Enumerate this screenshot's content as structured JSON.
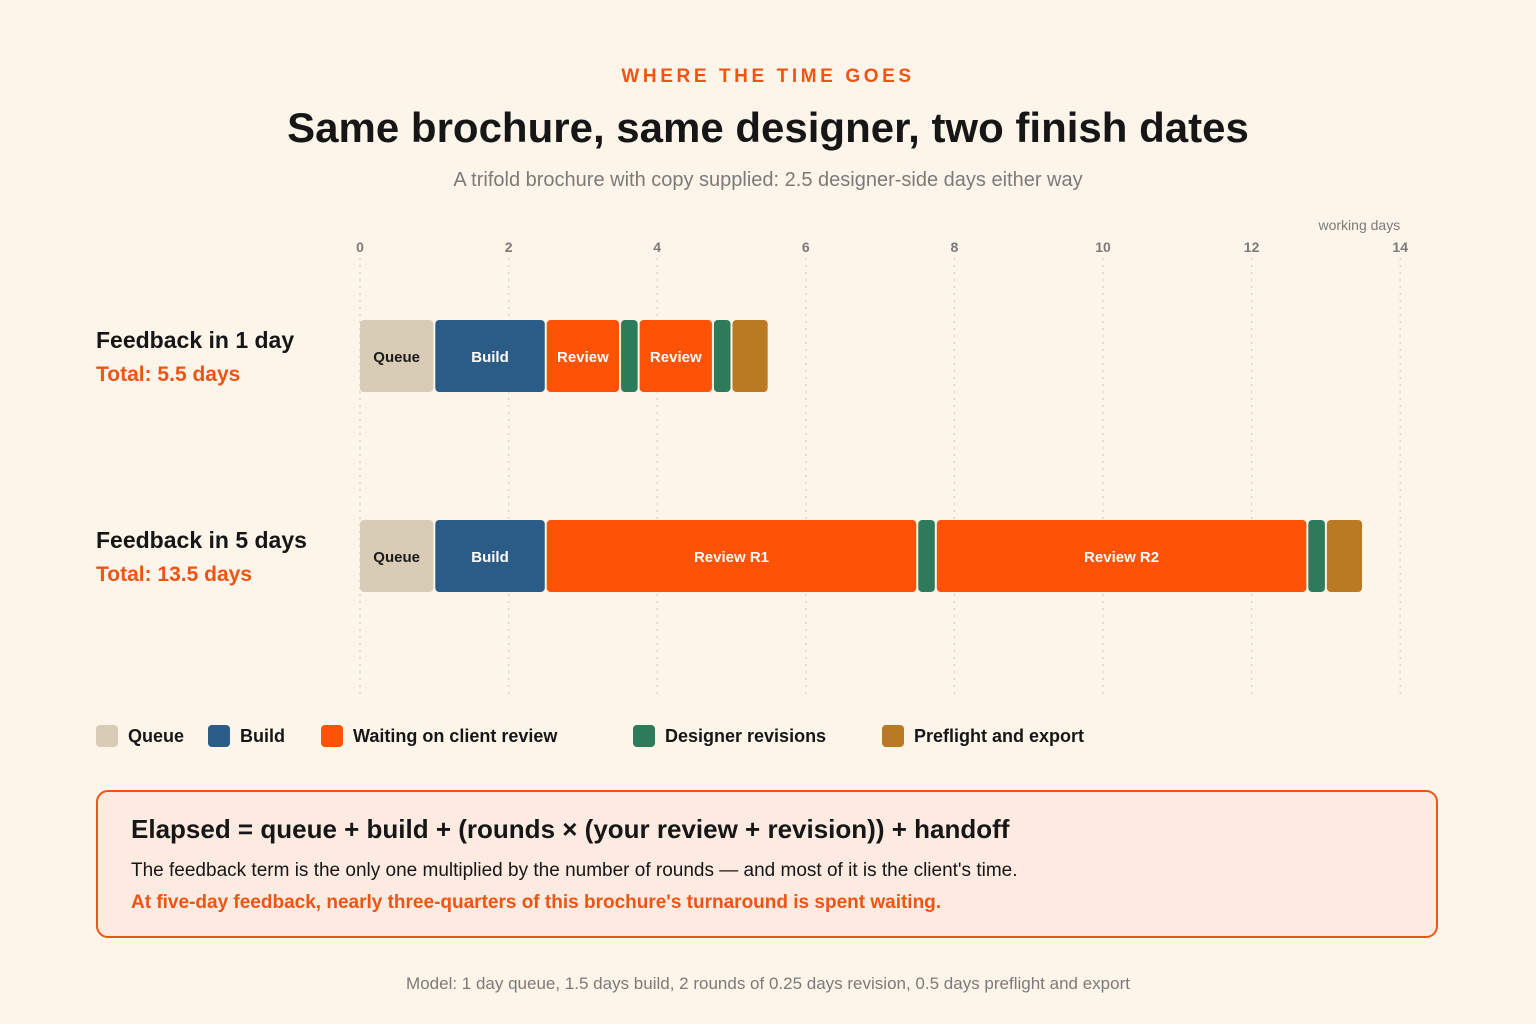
{
  "header": {
    "eyebrow": "WHERE THE TIME GOES",
    "title": "Same brochure, same designer, two finish dates",
    "subtitle": "A trifold brochure with copy supplied: 2.5 designer-side days either way"
  },
  "chart_data": {
    "type": "bar",
    "orientation": "horizontal-stacked-timeline",
    "x_axis": {
      "label": "working days",
      "range": [
        0,
        14
      ],
      "ticks": [
        0,
        2,
        4,
        6,
        8,
        10,
        12,
        14
      ],
      "grid": "dotted vertical"
    },
    "rows": [
      {
        "label": "Feedback in 1 day",
        "total_label": "Total: 5.5 days",
        "segments": [
          {
            "category": "queue",
            "start": 0,
            "end": 1,
            "label": "Queue"
          },
          {
            "category": "build",
            "start": 1,
            "end": 2.5,
            "label": "Build"
          },
          {
            "category": "review",
            "start": 2.5,
            "end": 3.5,
            "label": "Review"
          },
          {
            "category": "revision",
            "start": 3.5,
            "end": 3.75,
            "label": ""
          },
          {
            "category": "review",
            "start": 3.75,
            "end": 4.75,
            "label": "Review"
          },
          {
            "category": "revision",
            "start": 4.75,
            "end": 5,
            "label": ""
          },
          {
            "category": "preflight",
            "start": 5,
            "end": 5.5,
            "label": ""
          }
        ]
      },
      {
        "label": "Feedback in 5 days",
        "total_label": "Total: 13.5 days",
        "segments": [
          {
            "category": "queue",
            "start": 0,
            "end": 1,
            "label": "Queue"
          },
          {
            "category": "build",
            "start": 1,
            "end": 2.5,
            "label": "Build"
          },
          {
            "category": "review",
            "start": 2.5,
            "end": 7.5,
            "label": "Review R1"
          },
          {
            "category": "revision",
            "start": 7.5,
            "end": 7.75,
            "label": ""
          },
          {
            "category": "review",
            "start": 7.75,
            "end": 12.75,
            "label": "Review R2"
          },
          {
            "category": "revision",
            "start": 12.75,
            "end": 13,
            "label": ""
          },
          {
            "category": "preflight",
            "start": 13,
            "end": 13.5,
            "label": ""
          }
        ]
      }
    ],
    "categories": {
      "queue": {
        "color": "#d9ccb6",
        "text_color": "#1a1a1a"
      },
      "build": {
        "color": "#2b5b87",
        "text_color": "#ffffff"
      },
      "review": {
        "color": "#fe5206",
        "text_color": "#ffffff"
      },
      "revision": {
        "color": "#2d7b5a",
        "text_color": "#ffffff"
      },
      "preflight": {
        "color": "#b97a23",
        "text_color": "#ffffff"
      }
    },
    "legend": [
      {
        "category": "queue",
        "label": "Queue"
      },
      {
        "category": "build",
        "label": "Build"
      },
      {
        "category": "review",
        "label": "Waiting on client review"
      },
      {
        "category": "revision",
        "label": "Designer revisions"
      },
      {
        "category": "preflight",
        "label": "Preflight and export"
      }
    ]
  },
  "callout": {
    "formula": "Elapsed = queue + build + (rounds × (your review + revision)) + handoff",
    "body": "The feedback term is the only one multiplied by the number of rounds — and most of it is the client's time.",
    "emphasis": "At five-day feedback, nearly three-quarters of this brochure's turnaround is spent waiting."
  },
  "footnote": "Model: 1 day queue, 1.5 days build, 2 rounds of 0.25 days revision, 0.5 days preflight and export",
  "colors": {
    "accent": "#f05412",
    "background": "#fdf5ea",
    "callout_bg": "#fdebe2"
  }
}
